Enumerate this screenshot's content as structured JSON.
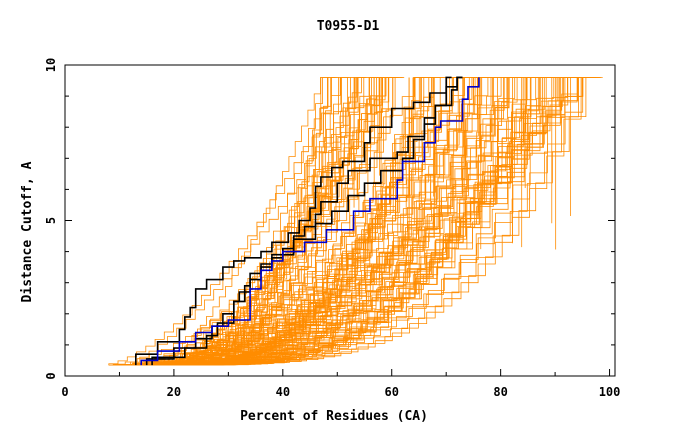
{
  "chart_data": {
    "type": "line",
    "title": "T0955-D1",
    "xlabel": "Percent of Residues (CA)",
    "ylabel": "Distance Cutoff, A",
    "xlim": [
      0,
      101
    ],
    "ylim": [
      0,
      10
    ],
    "x_ticks": [
      "0",
      "20",
      "40",
      "60",
      "80",
      "100"
    ],
    "y_ticks": [
      "0",
      "5",
      "10"
    ],
    "grid": false,
    "legend": "none",
    "colors": {
      "background_models": "#ff8c00",
      "highlight": "#000000",
      "reference": "#0000cc"
    },
    "highlighted_series": [
      {
        "color": "#000000",
        "points": [
          [
            13,
            0.35
          ],
          [
            17,
            0.7
          ],
          [
            21,
            1.1
          ],
          [
            22,
            1.5
          ],
          [
            23,
            1.9
          ],
          [
            24,
            2.2
          ],
          [
            24,
            2.7
          ],
          [
            26,
            2.8
          ],
          [
            29,
            3.1
          ],
          [
            31,
            3.5
          ],
          [
            33,
            3.7
          ],
          [
            36,
            3.8
          ],
          [
            38,
            4.0
          ],
          [
            41,
            4.3
          ],
          [
            43,
            4.6
          ],
          [
            45,
            5.0
          ],
          [
            46,
            5.4
          ],
          [
            47,
            6.1
          ],
          [
            49,
            6.4
          ],
          [
            51,
            6.7
          ],
          [
            55,
            6.9
          ],
          [
            56,
            7.5
          ],
          [
            60,
            8.0
          ],
          [
            64,
            8.6
          ],
          [
            67,
            8.8
          ],
          [
            70,
            9.1
          ],
          [
            71,
            9.6
          ]
        ]
      },
      {
        "color": "#000000",
        "points": [
          [
            16,
            0.35
          ],
          [
            22,
            0.6
          ],
          [
            26,
            0.9
          ],
          [
            28,
            1.3
          ],
          [
            31,
            1.7
          ],
          [
            31,
            2.1
          ],
          [
            33,
            2.4
          ],
          [
            34,
            2.9
          ],
          [
            36,
            3.3
          ],
          [
            38,
            3.6
          ],
          [
            40,
            3.8
          ],
          [
            42,
            4.1
          ],
          [
            44,
            4.5
          ],
          [
            46,
            4.8
          ],
          [
            47,
            5.2
          ],
          [
            50,
            5.6
          ],
          [
            52,
            6.2
          ],
          [
            56,
            6.6
          ],
          [
            61,
            7.0
          ],
          [
            63,
            7.2
          ],
          [
            66,
            7.7
          ],
          [
            68,
            8.3
          ],
          [
            71,
            8.7
          ],
          [
            72,
            9.2
          ],
          [
            73,
            9.6
          ]
        ]
      },
      {
        "color": "#000000",
        "points": [
          [
            15,
            0.35
          ],
          [
            20,
            0.55
          ],
          [
            24,
            0.9
          ],
          [
            27,
            1.2
          ],
          [
            29,
            1.6
          ],
          [
            31,
            2.0
          ],
          [
            32,
            2.4
          ],
          [
            34,
            2.7
          ],
          [
            36,
            3.1
          ],
          [
            38,
            3.5
          ],
          [
            42,
            3.9
          ],
          [
            46,
            4.4
          ],
          [
            49,
            4.9
          ],
          [
            52,
            5.3
          ],
          [
            55,
            5.8
          ],
          [
            58,
            6.2
          ],
          [
            62,
            6.6
          ],
          [
            64,
            7.0
          ],
          [
            66,
            7.6
          ],
          [
            68,
            8.1
          ],
          [
            70,
            8.7
          ],
          [
            72,
            9.3
          ],
          [
            73,
            9.6
          ]
        ]
      },
      {
        "color": "#0000cc",
        "points": [
          [
            14,
            0.35
          ],
          [
            17,
            0.5
          ],
          [
            21,
            0.8
          ],
          [
            24,
            1.1
          ],
          [
            27,
            1.4
          ],
          [
            30,
            1.6
          ],
          [
            34,
            1.8
          ],
          [
            34,
            2.5
          ],
          [
            36,
            2.8
          ],
          [
            38,
            3.4
          ],
          [
            40,
            3.7
          ],
          [
            44,
            4.0
          ],
          [
            48,
            4.3
          ],
          [
            53,
            4.7
          ],
          [
            56,
            5.3
          ],
          [
            61,
            5.7
          ],
          [
            62,
            6.3
          ],
          [
            66,
            6.9
          ],
          [
            68,
            7.5
          ],
          [
            69,
            8.0
          ],
          [
            73,
            8.2
          ],
          [
            74,
            8.9
          ],
          [
            76,
            9.3
          ],
          [
            76,
            9.6
          ]
        ]
      }
    ]
  }
}
